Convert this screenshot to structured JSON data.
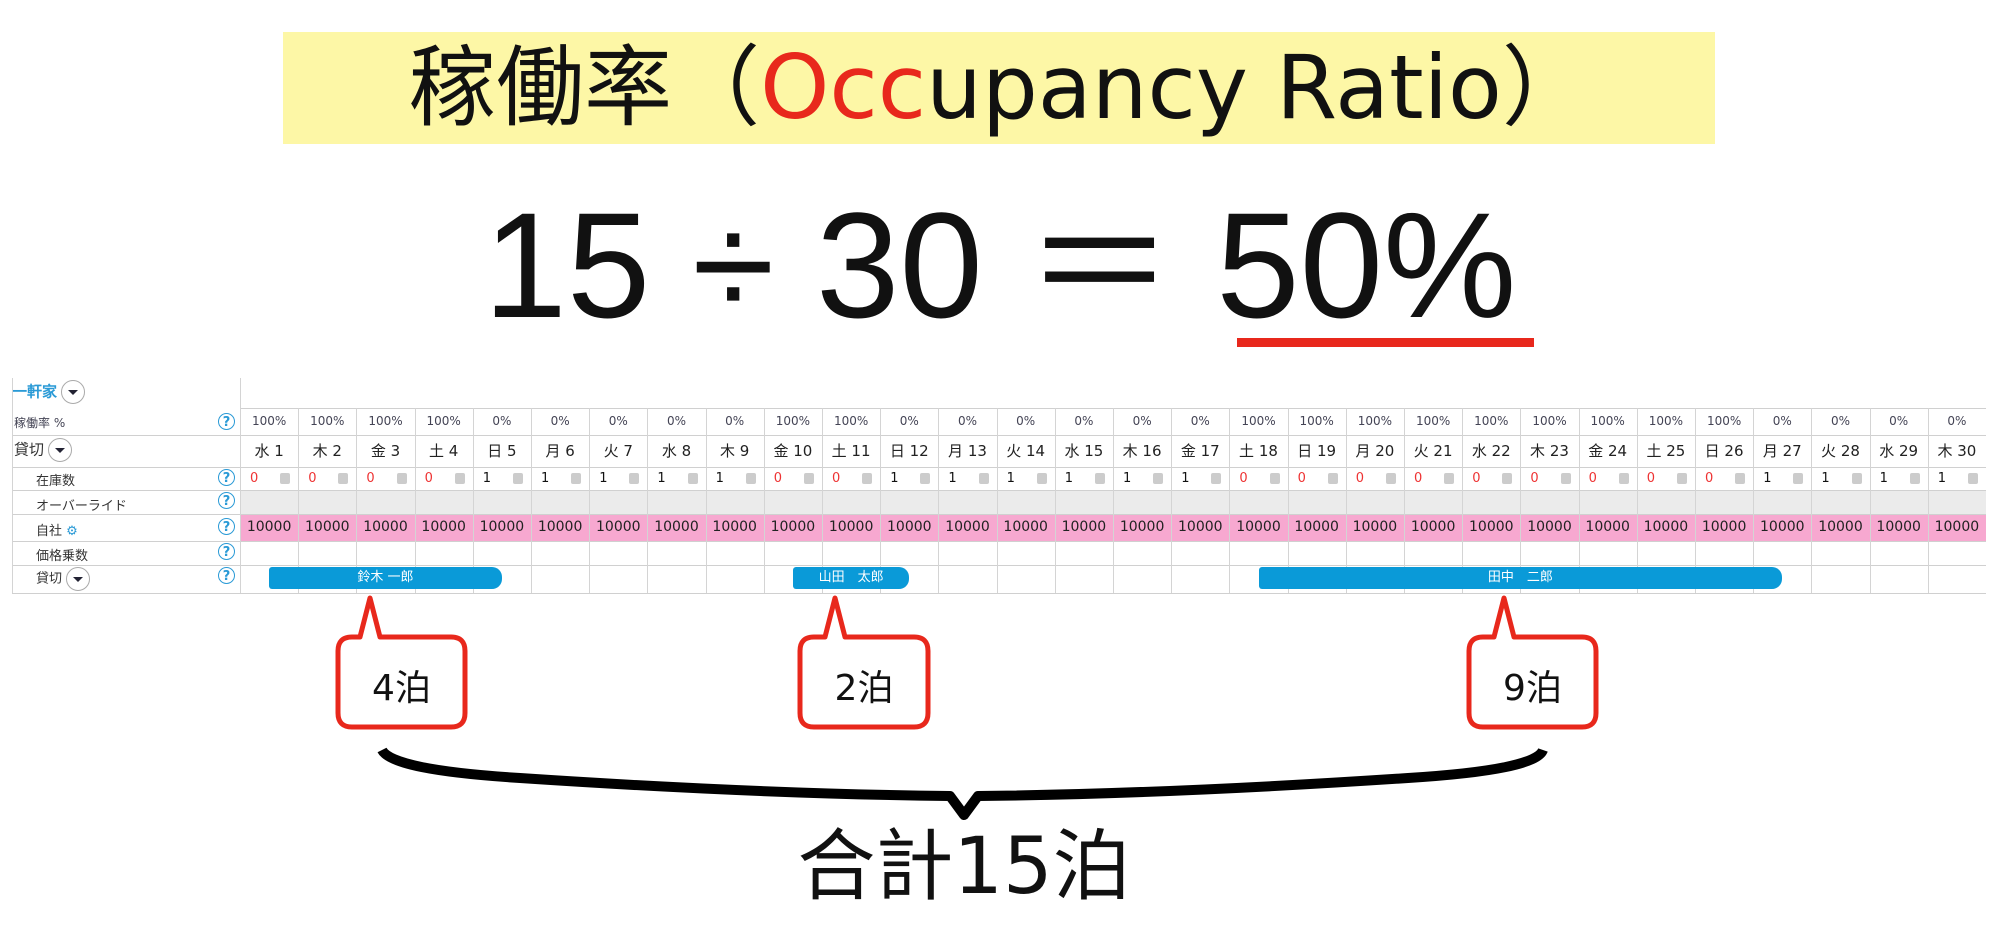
{
  "title": {
    "part1": "稼働率（",
    "part_red": "Occ",
    "part2": "upancy Ratio）",
    "accent_color": "#e8281c",
    "background_color": "#fdf7a6"
  },
  "formula": {
    "expression": "15 ÷ 30 ＝ ",
    "result": "50%"
  },
  "table": {
    "group_label": "一軒家",
    "rows": {
      "occupancy": "稼働率 %",
      "plan": "貸切",
      "stock": "在庫数",
      "override": "オーバーライド",
      "own": "自社",
      "multiplier": "価格乗数",
      "booking": "貸切"
    },
    "help_icon": "?",
    "price": "10000",
    "price_row_color": "#f7a8d0",
    "days": [
      {
        "label": "水 1",
        "occ": "100%",
        "stock": "0"
      },
      {
        "label": "木 2",
        "occ": "100%",
        "stock": "0"
      },
      {
        "label": "金 3",
        "occ": "100%",
        "stock": "0"
      },
      {
        "label": "土 4",
        "occ": "100%",
        "stock": "0"
      },
      {
        "label": "日 5",
        "occ": "0%",
        "stock": "1"
      },
      {
        "label": "月 6",
        "occ": "0%",
        "stock": "1"
      },
      {
        "label": "火 7",
        "occ": "0%",
        "stock": "1"
      },
      {
        "label": "水 8",
        "occ": "0%",
        "stock": "1"
      },
      {
        "label": "木 9",
        "occ": "0%",
        "stock": "1"
      },
      {
        "label": "金 10",
        "occ": "100%",
        "stock": "0"
      },
      {
        "label": "土 11",
        "occ": "100%",
        "stock": "0"
      },
      {
        "label": "日 12",
        "occ": "0%",
        "stock": "1"
      },
      {
        "label": "月 13",
        "occ": "0%",
        "stock": "1"
      },
      {
        "label": "火 14",
        "occ": "0%",
        "stock": "1"
      },
      {
        "label": "水 15",
        "occ": "0%",
        "stock": "1"
      },
      {
        "label": "木 16",
        "occ": "0%",
        "stock": "1"
      },
      {
        "label": "金 17",
        "occ": "0%",
        "stock": "1"
      },
      {
        "label": "土 18",
        "occ": "100%",
        "stock": "0"
      },
      {
        "label": "日 19",
        "occ": "100%",
        "stock": "0"
      },
      {
        "label": "月 20",
        "occ": "100%",
        "stock": "0"
      },
      {
        "label": "火 21",
        "occ": "100%",
        "stock": "0"
      },
      {
        "label": "水 22",
        "occ": "100%",
        "stock": "0"
      },
      {
        "label": "木 23",
        "occ": "100%",
        "stock": "0"
      },
      {
        "label": "金 24",
        "occ": "100%",
        "stock": "0"
      },
      {
        "label": "土 25",
        "occ": "100%",
        "stock": "0"
      },
      {
        "label": "日 26",
        "occ": "100%",
        "stock": "0"
      },
      {
        "label": "月 27",
        "occ": "0%",
        "stock": "1"
      },
      {
        "label": "火 28",
        "occ": "0%",
        "stock": "1"
      },
      {
        "label": "水 29",
        "occ": "0%",
        "stock": "1"
      },
      {
        "label": "木 30",
        "occ": "0%",
        "stock": "1"
      }
    ],
    "bookings": [
      {
        "name": "鈴木 一郎",
        "check_in": 1,
        "check_out": 5
      },
      {
        "name": "山田　太郎",
        "check_in": 10,
        "check_out": 12
      },
      {
        "name": "田中　二郎",
        "check_in": 18,
        "check_out": 27
      }
    ],
    "booking_color": "#0a9ad8"
  },
  "callouts": [
    "4泊",
    "2泊",
    "9泊"
  ],
  "total": "合計15泊"
}
